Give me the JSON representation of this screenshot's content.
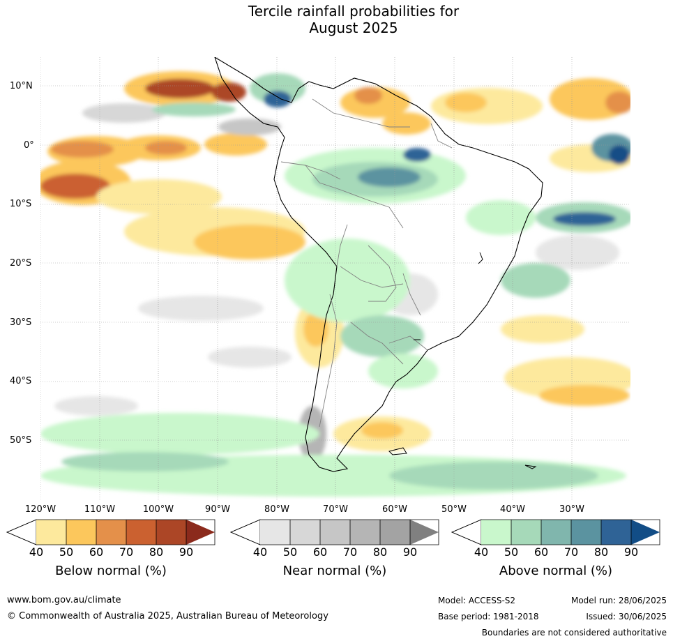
{
  "title_line1": "Tercile rainfall probabilities for",
  "title_line2": "August 2025",
  "lat_labels": [
    "10°N",
    "0°",
    "10°S",
    "20°S",
    "30°S",
    "40°S",
    "50°S"
  ],
  "lon_labels": [
    "120°W",
    "110°W",
    "100°W",
    "90°W",
    "80°W",
    "70°W",
    "60°W",
    "50°W",
    "40°W",
    "30°W"
  ],
  "colorbars": [
    {
      "title": "Below normal (%)",
      "ticks": [
        "40",
        "50",
        "60",
        "70",
        "80",
        "90"
      ],
      "colors": [
        "#fde99d",
        "#fcc75c",
        "#e4904a",
        "#cb6130",
        "#ac4626",
        "#8b2a1c"
      ]
    },
    {
      "title": "Near normal (%)",
      "ticks": [
        "40",
        "50",
        "60",
        "70",
        "80",
        "90"
      ],
      "colors": [
        "#e6e6e6",
        "#d7d7d7",
        "#c6c6c6",
        "#b5b5b5",
        "#a3a3a3",
        "#808080"
      ]
    },
    {
      "title": "Above normal (%)",
      "ticks": [
        "40",
        "50",
        "60",
        "70",
        "80",
        "90"
      ],
      "colors": [
        "#c9f7cc",
        "#a6d9b9",
        "#80b6ad",
        "#5b93a0",
        "#2f6396",
        "#124d86"
      ]
    }
  ],
  "footer": {
    "url": "www.bom.gov.au/climate",
    "copyright": "© Commonwealth of Australia 2025, Australian Bureau of Meteorology",
    "model": "Model: ACCESS-S2",
    "base_period": "Base period: 1981-2018",
    "model_run": "Model run: 28/06/2025",
    "issued": "Issued: 30/06/2025",
    "disclaimer": "Boundaries are not considered authoritative"
  }
}
